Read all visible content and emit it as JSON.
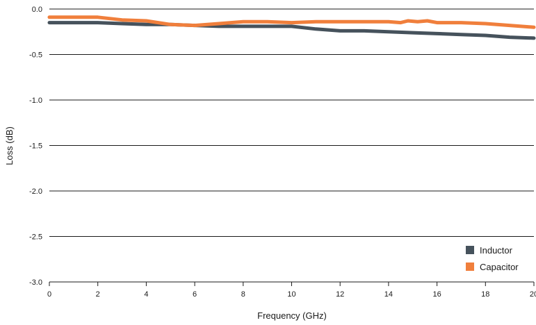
{
  "chart_data": {
    "type": "line",
    "xlabel": "Frequency (GHz)",
    "ylabel": "Loss (dB)",
    "xlim": [
      0,
      20
    ],
    "ylim": [
      -3.0,
      0.0
    ],
    "xticks": [
      0,
      2,
      4,
      6,
      8,
      10,
      12,
      14,
      16,
      18,
      20
    ],
    "xtick_labels": [
      "0",
      "2",
      "4",
      "6",
      "8",
      "10",
      "12",
      "14",
      "16",
      "18",
      "20"
    ],
    "yticks": [
      0.0,
      -0.5,
      -1.0,
      -1.5,
      -2.0,
      -2.5,
      -3.0
    ],
    "ytick_labels": [
      "0.0",
      "-0.5",
      "-1.0",
      "-1.5",
      "-2.0",
      "-2.5",
      "-3.0"
    ],
    "grid": "horizontal",
    "legend_position": "bottom-right",
    "series": [
      {
        "name": "Inductor",
        "color": "#46525c",
        "x": [
          0,
          1,
          2,
          3,
          4,
          5,
          6,
          7,
          8,
          9,
          10,
          11,
          12,
          13,
          14,
          15,
          16,
          17,
          18,
          19,
          20
        ],
        "y": [
          -0.15,
          -0.15,
          -0.15,
          -0.16,
          -0.17,
          -0.17,
          -0.18,
          -0.19,
          -0.19,
          -0.19,
          -0.19,
          -0.22,
          -0.24,
          -0.24,
          -0.25,
          -0.26,
          -0.27,
          -0.28,
          -0.29,
          -0.31,
          -0.32
        ]
      },
      {
        "name": "Capacitor",
        "color": "#f07f3c",
        "x": [
          0,
          1,
          2,
          3,
          4,
          5,
          6,
          7,
          8,
          9,
          10,
          11,
          12,
          13,
          14,
          14.5,
          14.8,
          15.2,
          15.6,
          16,
          17,
          18,
          19,
          20
        ],
        "y": [
          -0.09,
          -0.09,
          -0.09,
          -0.12,
          -0.13,
          -0.17,
          -0.18,
          -0.16,
          -0.14,
          -0.14,
          -0.15,
          -0.14,
          -0.14,
          -0.14,
          -0.14,
          -0.15,
          -0.13,
          -0.14,
          -0.13,
          -0.15,
          -0.15,
          -0.16,
          -0.18,
          -0.2
        ]
      }
    ]
  }
}
